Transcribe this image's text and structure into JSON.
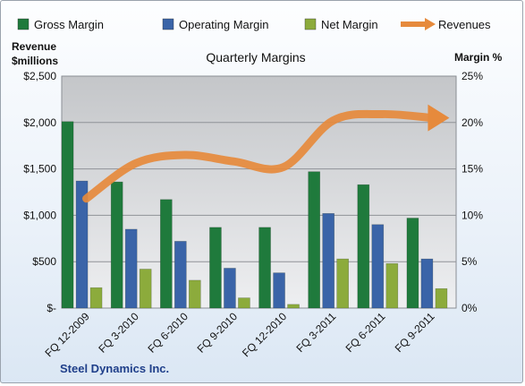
{
  "chart_data": {
    "type": "bar",
    "title": "Quarterly Margins",
    "left_axis_title": [
      "Revenue",
      "$millions"
    ],
    "right_axis_title": "Margin %",
    "footer": "Steel Dynamics  Inc.",
    "categories": [
      "FQ 12-2009",
      "FQ 3-2010",
      "FQ 6-2010",
      "FQ 9-2010",
      "FQ 12-2010",
      "FQ 3-2011",
      "FQ 6-2011",
      "FQ 9-2011"
    ],
    "left_ticks": [
      "$-",
      "$500",
      "$1,000",
      "$1,500",
      "$2,000",
      "$2,500"
    ],
    "right_ticks": [
      "0%",
      "5%",
      "10%",
      "15%",
      "20%",
      "25%"
    ],
    "ylim_left": [
      0,
      2500
    ],
    "ylim_right": [
      0,
      25
    ],
    "bar_series": [
      {
        "name": "Gross Margin",
        "color": "#1f7a3c",
        "values": [
          20.1,
          13.6,
          11.7,
          8.7,
          8.7,
          14.7,
          13.3,
          9.7
        ]
      },
      {
        "name": "Operating Margin",
        "color": "#3a64a8",
        "values": [
          13.7,
          8.5,
          7.2,
          4.3,
          3.8,
          10.2,
          9.0,
          5.3
        ]
      },
      {
        "name": "Net Margin",
        "color": "#8cab3c",
        "values": [
          2.2,
          4.2,
          3.0,
          1.1,
          0.4,
          5.3,
          4.8,
          2.1
        ]
      }
    ],
    "line_series": {
      "name": "Revenues",
      "color": "#e68a3c",
      "values": [
        1180,
        1560,
        1650,
        1580,
        1520,
        2020,
        2090,
        2050
      ]
    },
    "grid": true,
    "legend": "top"
  }
}
